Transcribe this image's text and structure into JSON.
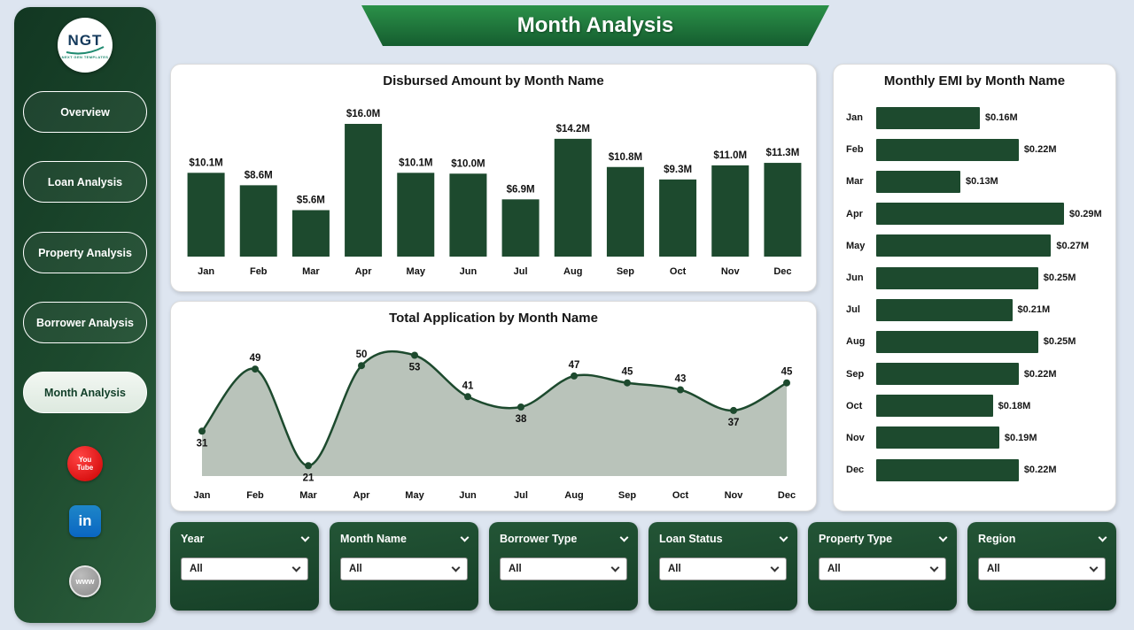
{
  "app": {
    "title": "Month Analysis"
  },
  "colors": {
    "dark_green": "#1d4a2e",
    "banner_green": "#1f7c3d",
    "area_fill": "#b9c3ba",
    "youtube_red": "#cc0000",
    "linkedin_blue": "#0a66c2"
  },
  "sidebar": {
    "logo": {
      "text": "NGT",
      "subtext": "NEXT GEN TEMPLATES"
    },
    "items": [
      {
        "label": "Overview",
        "active": false
      },
      {
        "label": "Loan Analysis",
        "active": false
      },
      {
        "label": "Property Analysis",
        "active": false
      },
      {
        "label": "Borrower Analysis",
        "active": false
      },
      {
        "label": "Month Analysis",
        "active": true
      }
    ],
    "social": {
      "youtube": {
        "icon": "youtube-icon",
        "line1": "You",
        "line2": "Tube"
      },
      "linkedin": {
        "icon": "linkedin-icon",
        "label": "in"
      },
      "website": {
        "icon": "globe-icon",
        "label": "www"
      }
    }
  },
  "filters": [
    {
      "label": "Year",
      "value": "All"
    },
    {
      "label": "Month Name",
      "value": "All"
    },
    {
      "label": "Borrower Type",
      "value": "All"
    },
    {
      "label": "Loan Status",
      "value": "All"
    },
    {
      "label": "Property Type",
      "value": "All"
    },
    {
      "label": "Region",
      "value": "All"
    }
  ],
  "chart_data": [
    {
      "id": "disbursed",
      "type": "bar",
      "title": "Disbursed Amount by Month Name",
      "categories": [
        "Jan",
        "Feb",
        "Mar",
        "Apr",
        "May",
        "Jun",
        "Jul",
        "Aug",
        "Sep",
        "Oct",
        "Nov",
        "Dec"
      ],
      "values": [
        10.1,
        8.6,
        5.6,
        16.0,
        10.1,
        10.0,
        6.9,
        14.2,
        10.8,
        9.3,
        11.0,
        11.3
      ],
      "labels": [
        "$10.1M",
        "$8.6M",
        "$5.6M",
        "$16.0M",
        "$10.1M",
        "$10.0M",
        "$6.9M",
        "$14.2M",
        "$10.8M",
        "$9.3M",
        "$11.0M",
        "$11.3M"
      ],
      "xlabel": "Month Name",
      "ylabel": "Disbursed Amount",
      "ylim": [
        0,
        16.0
      ],
      "grid": false
    },
    {
      "id": "applications",
      "type": "area",
      "title": "Total Application by Month Name",
      "categories": [
        "Jan",
        "Feb",
        "Mar",
        "Apr",
        "May",
        "Jun",
        "Jul",
        "Aug",
        "Sep",
        "Oct",
        "Nov",
        "Dec"
      ],
      "values": [
        31,
        49,
        21,
        50,
        53,
        41,
        38,
        47,
        45,
        43,
        37,
        45
      ],
      "label_sides": [
        "below",
        "above",
        "below",
        "above",
        "below",
        "above",
        "below",
        "above",
        "above",
        "above",
        "below",
        "above"
      ],
      "xlabel": "Month Name",
      "ylabel": "Total Application",
      "ylim": [
        18,
        55
      ],
      "grid": false
    },
    {
      "id": "emi",
      "type": "bar-horizontal",
      "title": "Monthly EMI by Month Name",
      "categories": [
        "Jan",
        "Feb",
        "Mar",
        "Apr",
        "May",
        "Jun",
        "Jul",
        "Aug",
        "Sep",
        "Oct",
        "Nov",
        "Dec"
      ],
      "values": [
        0.16,
        0.22,
        0.13,
        0.29,
        0.27,
        0.25,
        0.21,
        0.25,
        0.22,
        0.18,
        0.19,
        0.22
      ],
      "labels": [
        "$0.16M",
        "$0.22M",
        "$0.13M",
        "$0.29M",
        "$0.27M",
        "$0.25M",
        "$0.21M",
        "$0.25M",
        "$0.22M",
        "$0.18M",
        "$0.19M",
        "$0.22M"
      ],
      "xlabel": "Monthly EMI",
      "ylabel": "Month Name",
      "xlim": [
        0,
        0.29
      ],
      "grid": false
    }
  ]
}
